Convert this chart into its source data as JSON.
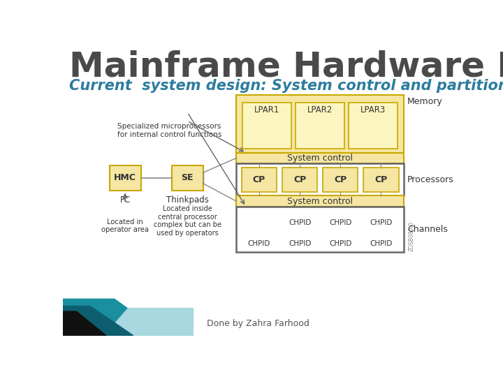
{
  "title": "Mainframe Hardware Design",
  "subtitle": "Current  system design: System control and partitioning",
  "footer": "Done by Zahra Farhood",
  "bg_color": "#ffffff",
  "title_color": "#4a4a4a",
  "subtitle_color": "#2e7d9e",
  "footer_color": "#555555",
  "yellow_fill": "#f5e6a3",
  "yellow_border": "#c8a800",
  "white_fill": "#ffffff",
  "dark_border": "#666666",
  "lpar_fill": "#fdf5c0",
  "cp_fill": "#f5e6a3",
  "teal1": "#1a8fa0",
  "teal2": "#0d5f6f",
  "teal_light": "#a8d8e0",
  "black": "#111111",
  "ann_color": "#333333",
  "line_color": "#888888"
}
